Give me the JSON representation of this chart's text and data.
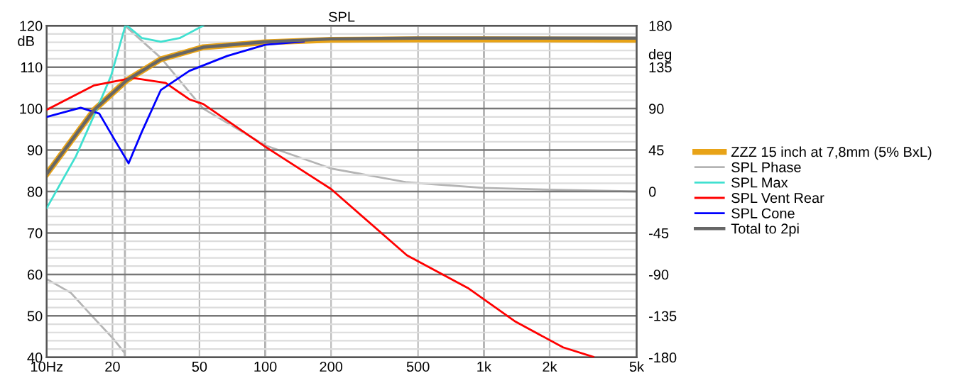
{
  "chart_data": {
    "type": "line",
    "title": "SPL",
    "ylabel": "dB",
    "y2label": "deg",
    "log": "x",
    "grid": true,
    "legend": "right",
    "xlim": [
      10,
      5000
    ],
    "xticks": [
      {
        "value": 10,
        "label": "10Hz"
      },
      20,
      50,
      100,
      200,
      500,
      {
        "value": 1000,
        "label": "1k"
      },
      {
        "value": 2000,
        "label": "2k"
      },
      {
        "value": 5000,
        "label": "5k"
      }
    ],
    "ylim": [
      40,
      120
    ],
    "yticks": [
      40,
      50,
      60,
      70,
      80,
      90,
      100,
      110,
      120
    ],
    "y2lim": [
      -180,
      180
    ],
    "y2ticks": [
      -180,
      -135,
      -90,
      -45,
      0,
      45,
      90,
      135,
      180
    ],
    "series": [
      {
        "name": "ZZZ 15 inch at 7,8mm (5% BxL)",
        "color": "#e8a317",
        "x": [
          10,
          16.5,
          23.2,
          33.3,
          52,
          100,
          200,
          500,
          1000,
          5000
        ],
        "values": [
          84.2,
          99.7,
          106.8,
          111.9,
          114.8,
          116.0,
          116.6,
          116.7,
          116.7,
          116.6
        ]
      },
      {
        "name": "SPL Phase",
        "color": "#b4b4b4",
        "axis": "y2",
        "x": [
          10,
          12.9,
          16.1,
          20.2,
          22.7,
          22.8,
          22.8,
          33.3,
          52,
          100,
          200,
          445,
          990,
          2000,
          5000
        ],
        "values": [
          -95,
          -110,
          -135,
          -160,
          -175,
          -180,
          180,
          145,
          90,
          50,
          25,
          10,
          4,
          2,
          0
        ]
      },
      {
        "name": "SPL Max",
        "color": "#40e0d0",
        "x": [
          10,
          13.6,
          16.97,
          19.7,
          22.9,
          23.1,
          23.3,
          27.3,
          33.3,
          40.6,
          52
        ],
        "values": [
          76,
          88.5,
          99.9,
          107.9,
          120,
          null,
          120,
          117,
          116.1,
          117,
          120
        ]
      },
      {
        "name": "SPL Vent Rear",
        "color": "#ff0000",
        "x": [
          10,
          16.5,
          24.7,
          35,
          45,
          52,
          100,
          200,
          445,
          853,
          1397,
          2305,
          3170
        ],
        "values": [
          99.7,
          105.6,
          107.4,
          106.2,
          102.2,
          101.1,
          90.8,
          80.6,
          64.6,
          56.6,
          48.6,
          42.4,
          40.1
        ]
      },
      {
        "name": "SPL Cone",
        "color": "#0000ff",
        "x": [
          10,
          14.3,
          17.4,
          20.7,
          23.7,
          27.2,
          33.3,
          45,
          67,
          100,
          150
        ],
        "values": [
          98,
          100.2,
          98.8,
          92,
          86.8,
          94.3,
          104.5,
          109.1,
          112.7,
          115.4,
          116.2
        ]
      },
      {
        "name": "Total to 2pi",
        "color": "#666666",
        "x": [
          10,
          16.5,
          23.2,
          33.3,
          52,
          100,
          200,
          500,
          1000,
          5000
        ],
        "values": [
          84.2,
          99.7,
          106.8,
          111.9,
          114.8,
          116.1,
          116.8,
          117,
          117,
          117
        ]
      }
    ]
  }
}
